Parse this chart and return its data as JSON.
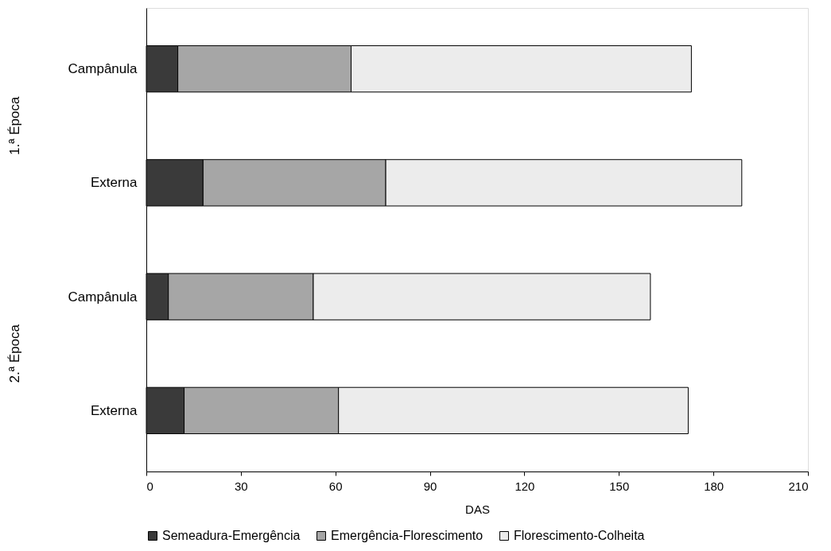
{
  "chart_data": {
    "type": "bar",
    "orientation": "horizontal",
    "stacked": true,
    "categories": [
      "Campânula",
      "Externa",
      "Campânula",
      "Externa"
    ],
    "series": [
      {
        "name": "Semeadura-Emergência",
        "color": "#3a3a3a",
        "values": [
          10,
          18,
          7,
          12
        ]
      },
      {
        "name": "Emergência-Florescimento",
        "color": "#a6a6a6",
        "values": [
          55,
          58,
          46,
          49
        ]
      },
      {
        "name": "Florescimento-Colheita",
        "color": "#ececec",
        "values": [
          108,
          113,
          107,
          111
        ]
      }
    ],
    "xlabel": "DAS",
    "xlim": [
      0,
      210
    ],
    "xticks": [
      0,
      30,
      60,
      90,
      120,
      150,
      180,
      210
    ],
    "annotations": [
      "1.ª Época",
      "2.ª Época"
    ],
    "grid": false,
    "legend": "bottom"
  }
}
